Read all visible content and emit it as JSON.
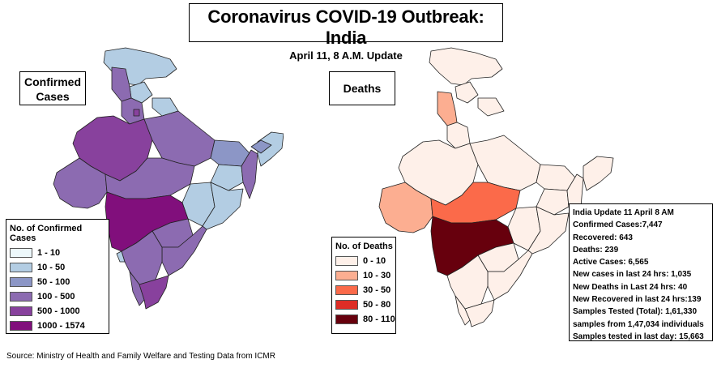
{
  "header": {
    "title": "Coronavirus COVID-19 Outbreak: India",
    "subtitle": "April 11, 8 A.M. Update"
  },
  "confirmed_map": {
    "label": "Confirmed Cases",
    "legend_title": "No. of Confirmed Cases",
    "legend": [
      {
        "range": "1 - 10",
        "color": "#edf8fb"
      },
      {
        "range": "10 - 50",
        "color": "#b3cde3"
      },
      {
        "range": "50 - 100",
        "color": "#8c96c6"
      },
      {
        "range": "100 - 500",
        "color": "#8c6bb1"
      },
      {
        "range": "500 - 1000",
        "color": "#88419d"
      },
      {
        "range": "1000 - 1574",
        "color": "#810f7c"
      }
    ]
  },
  "deaths_map": {
    "label": "Deaths",
    "legend_title": "No. of Deaths",
    "legend": [
      {
        "range": "0 - 10",
        "color": "#fef0e9"
      },
      {
        "range": "10 - 30",
        "color": "#fcae91"
      },
      {
        "range": "30 - 50",
        "color": "#fb6a4a"
      },
      {
        "range": "50 - 80",
        "color": "#de2d26"
      },
      {
        "range": "80 - 110",
        "color": "#67000d"
      }
    ]
  },
  "info": {
    "lines": [
      "India Update 11 April 8 AM",
      "Confirmed Cases:7,447",
      "Recovered: 643",
      "Deaths: 239",
      "Active Cases:  6,565",
      "New cases in last 24 hrs: 1,035",
      "New Deaths in Last 24 hrs: 40",
      "New Recovered in last 24 hrs:139",
      "Samples Tested (Total):   1,61,330",
      "samples from 1,47,034 individuals",
      "Samples tested in last day: 15,663"
    ]
  },
  "source": "Source: Ministry of Health and Family Welfare and Testing Data from ICMR"
}
